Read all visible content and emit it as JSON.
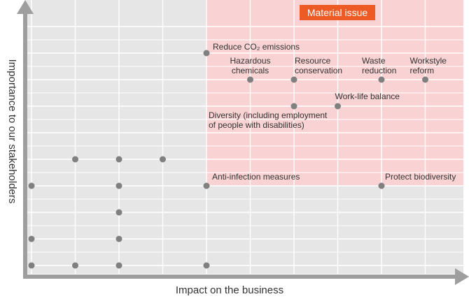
{
  "chart_data": {
    "type": "scatter",
    "title": "",
    "xlabel": "Impact on the business",
    "ylabel": "Importance to our stakeholders",
    "xlim": [
      0,
      10
    ],
    "ylim": [
      0,
      9
    ],
    "grid": true,
    "region": {
      "label": "Material issue",
      "x_from": 4,
      "y_from": 3
    },
    "colors": {
      "background": "#e6e6e6",
      "region": "#f9d3d3",
      "grid": "#ffffff",
      "badge": "#ee5a24",
      "point": "#808080",
      "axis": "#9e9e9e"
    },
    "points": [
      {
        "x": 4,
        "y": 8,
        "label": "Reduce CO₂ emissions"
      },
      {
        "x": 5,
        "y": 7,
        "label": "Hazardous\nchemicals"
      },
      {
        "x": 6,
        "y": 7,
        "label": "Resource\nconservation"
      },
      {
        "x": 8,
        "y": 7,
        "label": "Waste\nreduction"
      },
      {
        "x": 9,
        "y": 7,
        "label": "Workstyle\nreform"
      },
      {
        "x": 7,
        "y": 6,
        "label": "Work-life balance"
      },
      {
        "x": 6,
        "y": 6,
        "label": "Diversity (including employment\nof people with disabilities)"
      },
      {
        "x": 4,
        "y": 3,
        "label": "Anti-infection measures"
      },
      {
        "x": 8,
        "y": 3,
        "label": "Protect biodiversity"
      },
      {
        "x": 1,
        "y": 4,
        "label": ""
      },
      {
        "x": 2,
        "y": 4,
        "label": ""
      },
      {
        "x": 3,
        "y": 4,
        "label": ""
      },
      {
        "x": 0,
        "y": 3,
        "label": ""
      },
      {
        "x": 2,
        "y": 3,
        "label": ""
      },
      {
        "x": 2,
        "y": 2,
        "label": ""
      },
      {
        "x": 0,
        "y": 1,
        "label": ""
      },
      {
        "x": 2,
        "y": 1,
        "label": ""
      },
      {
        "x": 0,
        "y": 0,
        "label": ""
      },
      {
        "x": 1,
        "y": 0,
        "label": ""
      },
      {
        "x": 2,
        "y": 0,
        "label": ""
      },
      {
        "x": 4,
        "y": 0,
        "label": ""
      }
    ]
  }
}
